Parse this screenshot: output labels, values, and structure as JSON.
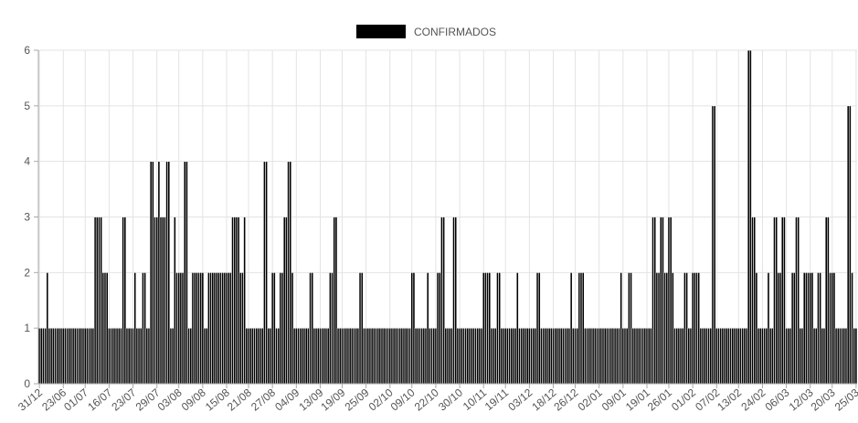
{
  "chart_data": {
    "type": "bar",
    "legend": {
      "label": "CONFIRMADOS",
      "position": "top-center",
      "color": "#000000"
    },
    "bar_color": "#000000",
    "grid": true,
    "ylim": [
      0,
      6
    ],
    "y_ticks": [
      0,
      1,
      2,
      3,
      4,
      5,
      6
    ],
    "x_tick_labels": [
      "31/12",
      "23/06",
      "01/07",
      "16/07",
      "23/07",
      "29/07",
      "03/08",
      "09/08",
      "15/08",
      "21/08",
      "27/08",
      "04/09",
      "13/09",
      "19/09",
      "25/09",
      "02/10",
      "09/10",
      "22/10",
      "30/10",
      "10/11",
      "19/11",
      "03/12",
      "18/12",
      "26/12",
      "02/01",
      "09/01",
      "19/01",
      "26/01",
      "01/02",
      "07/02",
      "13/02",
      "24/02",
      "06/03",
      "12/03",
      "20/03",
      "25/03"
    ],
    "series": [
      {
        "name": "CONFIRMADOS",
        "values": [
          1,
          1,
          1,
          1,
          2,
          1,
          1,
          1,
          1,
          1,
          1,
          1,
          1,
          1,
          1,
          1,
          1,
          1,
          1,
          1,
          1,
          1,
          1,
          1,
          1,
          1,
          1,
          1,
          3,
          3,
          3,
          3,
          2,
          2,
          2,
          1,
          1,
          1,
          1,
          1,
          1,
          1,
          3,
          3,
          1,
          1,
          1,
          1,
          2,
          1,
          1,
          1,
          2,
          2,
          1,
          1,
          4,
          4,
          3,
          3,
          4,
          3,
          3,
          3,
          4,
          4,
          1,
          1,
          3,
          2,
          2,
          2,
          2,
          4,
          4,
          1,
          1,
          2,
          2,
          2,
          2,
          2,
          2,
          1,
          1,
          2,
          2,
          2,
          2,
          2,
          2,
          2,
          2,
          2,
          2,
          2,
          2,
          3,
          3,
          3,
          3,
          2,
          2,
          3,
          1,
          1,
          1,
          1,
          1,
          1,
          1,
          1,
          1,
          4,
          4,
          1,
          1,
          2,
          2,
          1,
          1,
          2,
          2,
          3,
          3,
          4,
          4,
          2,
          1,
          1,
          1,
          1,
          1,
          1,
          1,
          1,
          2,
          2,
          1,
          1,
          1,
          1,
          1,
          1,
          1,
          1,
          2,
          2,
          3,
          3,
          1,
          1,
          1,
          1,
          1,
          1,
          1,
          1,
          1,
          1,
          1,
          2,
          2,
          1,
          1,
          1,
          1,
          1,
          1,
          1,
          1,
          1,
          1,
          1,
          1,
          1,
          1,
          1,
          1,
          1,
          1,
          1,
          1,
          1,
          1,
          1,
          1,
          2,
          2,
          1,
          1,
          1,
          1,
          1,
          1,
          2,
          1,
          1,
          1,
          1,
          2,
          2,
          3,
          3,
          1,
          1,
          1,
          1,
          3,
          3,
          1,
          1,
          1,
          1,
          1,
          1,
          1,
          1,
          1,
          1,
          1,
          1,
          1,
          2,
          2,
          2,
          2,
          1,
          1,
          1,
          2,
          2,
          1,
          1,
          1,
          1,
          1,
          1,
          1,
          1,
          2,
          1,
          1,
          1,
          1,
          1,
          1,
          1,
          1,
          1,
          2,
          2,
          1,
          1,
          1,
          1,
          1,
          1,
          1,
          1,
          1,
          1,
          1,
          1,
          1,
          1,
          1,
          2,
          1,
          1,
          1,
          2,
          2,
          2,
          1,
          1,
          1,
          1,
          1,
          1,
          1,
          1,
          1,
          1,
          1,
          1,
          1,
          1,
          1,
          1,
          1,
          1,
          2,
          1,
          1,
          1,
          2,
          2,
          1,
          1,
          1,
          1,
          1,
          1,
          1,
          1,
          1,
          1,
          3,
          3,
          2,
          2,
          3,
          3,
          2,
          2,
          3,
          3,
          2,
          1,
          1,
          1,
          1,
          1,
          2,
          2,
          1,
          1,
          2,
          2,
          2,
          2,
          1,
          1,
          1,
          1,
          1,
          1,
          5,
          5,
          1,
          1,
          1,
          1,
          1,
          1,
          1,
          1,
          1,
          1,
          1,
          1,
          1,
          1,
          1,
          1,
          6,
          6,
          3,
          3,
          2,
          1,
          1,
          1,
          1,
          1,
          2,
          1,
          1,
          3,
          3,
          2,
          2,
          3,
          3,
          1,
          1,
          1,
          2,
          2,
          3,
          3,
          1,
          1,
          2,
          2,
          2,
          2,
          2,
          1,
          1,
          2,
          2,
          1,
          1,
          3,
          3,
          2,
          2,
          2,
          1,
          1,
          1,
          1,
          1,
          1,
          5,
          5,
          2,
          1,
          1
        ]
      }
    ]
  }
}
